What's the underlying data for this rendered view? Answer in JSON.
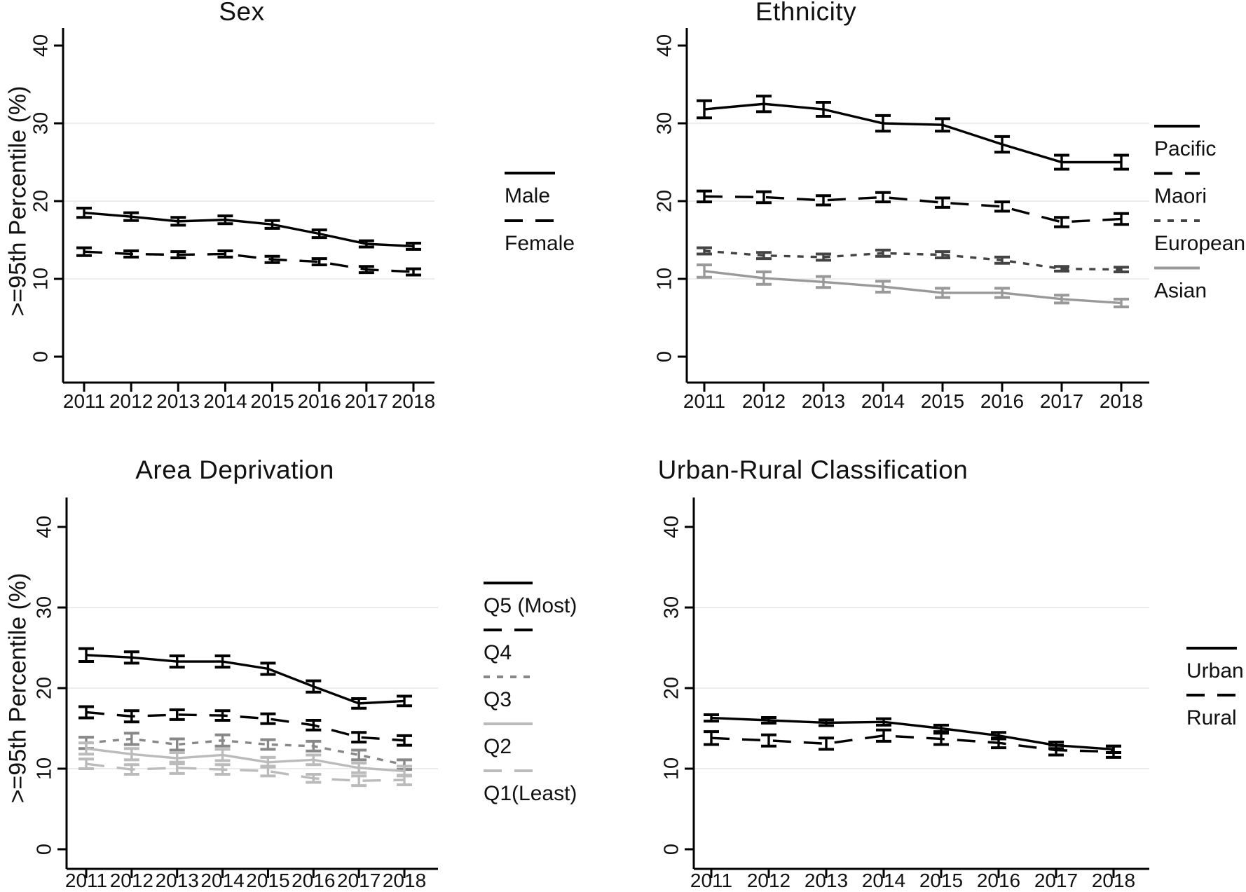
{
  "figure": {
    "ylabel": ">=95th Percentile (%)",
    "background": "#ffffff",
    "axis_color": "#000000",
    "grid_color": "#ececec"
  },
  "chart_data": [
    {
      "type": "line",
      "title": "Sex",
      "x": [
        2011,
        2012,
        2013,
        2014,
        2015,
        2016,
        2017,
        2018
      ],
      "ylabel": ">=95th Percentile (%)",
      "ylim": [
        0,
        40
      ],
      "yticks": [
        0,
        10,
        20,
        30,
        40
      ],
      "gridlines": [
        10,
        20,
        30
      ],
      "grid": true,
      "legend_position": "right",
      "error_bars": true,
      "series": [
        {
          "name": "Male",
          "color": "#000000",
          "dash": "solid",
          "values": [
            18.5,
            18.0,
            17.4,
            17.6,
            17.0,
            15.8,
            14.5,
            14.2
          ],
          "err": [
            0.6,
            0.5,
            0.5,
            0.5,
            0.5,
            0.5,
            0.4,
            0.4
          ]
        },
        {
          "name": "Female",
          "color": "#000000",
          "dash": "longdash",
          "values": [
            13.5,
            13.2,
            13.1,
            13.2,
            12.5,
            12.2,
            11.2,
            10.9
          ],
          "err": [
            0.5,
            0.4,
            0.4,
            0.4,
            0.4,
            0.4,
            0.4,
            0.4
          ]
        }
      ]
    },
    {
      "type": "line",
      "title": "Ethnicity",
      "x": [
        2011,
        2012,
        2013,
        2014,
        2015,
        2016,
        2017,
        2018
      ],
      "ylabel": ">=95th Percentile (%)",
      "ylim": [
        0,
        40
      ],
      "yticks": [
        0,
        10,
        20,
        30,
        40
      ],
      "gridlines": [
        10,
        20,
        30
      ],
      "grid": true,
      "legend_position": "right",
      "error_bars": true,
      "series": [
        {
          "name": "Pacific",
          "color": "#000000",
          "dash": "solid",
          "values": [
            31.8,
            32.5,
            31.8,
            30.0,
            29.8,
            27.3,
            25.0,
            25.0
          ],
          "err": [
            1.1,
            1.0,
            0.9,
            1.0,
            0.8,
            1.0,
            0.9,
            0.9
          ]
        },
        {
          "name": "Maori",
          "color": "#000000",
          "dash": "longdash",
          "values": [
            20.6,
            20.5,
            20.1,
            20.5,
            19.8,
            19.3,
            17.3,
            17.7
          ],
          "err": [
            0.7,
            0.7,
            0.6,
            0.6,
            0.6,
            0.6,
            0.6,
            0.7
          ]
        },
        {
          "name": "European",
          "color": "#444444",
          "dash": "shortdash",
          "values": [
            13.6,
            13.0,
            12.8,
            13.3,
            13.1,
            12.4,
            11.3,
            11.2
          ],
          "err": [
            0.4,
            0.4,
            0.4,
            0.4,
            0.4,
            0.4,
            0.3,
            0.3
          ]
        },
        {
          "name": "Asian",
          "color": "#999999",
          "dash": "solid",
          "values": [
            11.0,
            10.1,
            9.6,
            9.0,
            8.2,
            8.2,
            7.4,
            6.9
          ],
          "err": [
            0.8,
            0.8,
            0.7,
            0.7,
            0.6,
            0.6,
            0.5,
            0.5
          ]
        }
      ]
    },
    {
      "type": "line",
      "title": "Area Deprivation",
      "x": [
        2011,
        2012,
        2013,
        2014,
        2015,
        2016,
        2017,
        2018
      ],
      "ylabel": ">=95th Percentile (%)",
      "ylim": [
        0,
        40
      ],
      "yticks": [
        0,
        10,
        20,
        30,
        40
      ],
      "gridlines": [
        10,
        20,
        30
      ],
      "grid": true,
      "legend_position": "right",
      "error_bars": true,
      "series": [
        {
          "name": "Q5 (Most)",
          "color": "#000000",
          "dash": "solid",
          "values": [
            24.1,
            23.8,
            23.3,
            23.3,
            22.4,
            20.2,
            18.1,
            18.4
          ],
          "err": [
            0.8,
            0.7,
            0.7,
            0.7,
            0.7,
            0.7,
            0.6,
            0.6
          ]
        },
        {
          "name": "Q4",
          "color": "#000000",
          "dash": "longdash",
          "values": [
            17.0,
            16.5,
            16.7,
            16.6,
            16.2,
            15.4,
            13.9,
            13.5
          ],
          "err": [
            0.7,
            0.7,
            0.6,
            0.6,
            0.6,
            0.6,
            0.6,
            0.6
          ]
        },
        {
          "name": "Q3",
          "color": "#888888",
          "dash": "shortdash",
          "values": [
            13.2,
            13.7,
            13.0,
            13.5,
            13.0,
            12.8,
            11.7,
            10.5
          ],
          "err": [
            0.7,
            0.7,
            0.7,
            0.7,
            0.6,
            0.6,
            0.6,
            0.6
          ]
        },
        {
          "name": "Q2",
          "color": "#bbbbbb",
          "dash": "solid",
          "values": [
            12.5,
            11.8,
            11.3,
            11.7,
            10.8,
            11.1,
            10.1,
            9.7
          ],
          "err": [
            0.7,
            0.7,
            0.7,
            0.7,
            0.6,
            0.6,
            0.6,
            0.6
          ]
        },
        {
          "name": "Q1(Least)",
          "color": "#bbbbbb",
          "dash": "longdash",
          "values": [
            10.6,
            9.9,
            10.1,
            9.9,
            9.7,
            8.8,
            8.5,
            8.6
          ],
          "err": [
            0.6,
            0.6,
            0.7,
            0.6,
            0.6,
            0.5,
            0.6,
            0.6
          ]
        }
      ]
    },
    {
      "type": "line",
      "title": "Urban-Rural Classification",
      "x": [
        2011,
        2012,
        2013,
        2014,
        2015,
        2016,
        2017,
        2018
      ],
      "ylabel": ">=95th Percentile (%)",
      "ylim": [
        0,
        40
      ],
      "yticks": [
        0,
        10,
        20,
        30,
        40
      ],
      "gridlines": [
        10,
        20,
        30
      ],
      "grid": true,
      "legend_position": "right",
      "error_bars": true,
      "series": [
        {
          "name": "Urban",
          "color": "#000000",
          "dash": "solid",
          "values": [
            16.3,
            16.0,
            15.7,
            15.8,
            15.0,
            14.1,
            12.9,
            12.4
          ],
          "err": [
            0.4,
            0.35,
            0.35,
            0.4,
            0.4,
            0.4,
            0.4,
            0.4
          ]
        },
        {
          "name": "Rural",
          "color": "#000000",
          "dash": "longdash",
          "values": [
            13.8,
            13.5,
            13.1,
            14.1,
            13.7,
            13.2,
            12.3,
            12.1
          ],
          "err": [
            0.8,
            0.7,
            0.7,
            0.7,
            0.7,
            0.6,
            0.6,
            0.7
          ]
        }
      ]
    }
  ]
}
